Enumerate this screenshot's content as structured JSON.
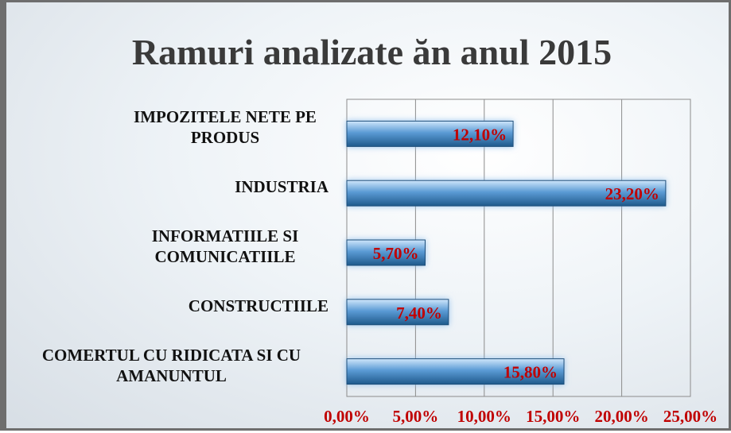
{
  "chart_data": {
    "type": "bar",
    "horizontal": true,
    "title": "Ramuri analizate ăn anul 2015",
    "categories": [
      "IMPOZITELE NETE PE PRODUS",
      "INDUSTRIA",
      "INFORMATIILE SI COMUNICATIILE",
      "CONSTRUCTIILE",
      "COMERTUL CU RIDICATA SI CU AMANUNTUL"
    ],
    "values": [
      12.1,
      23.2,
      5.7,
      7.4,
      15.8
    ],
    "value_labels": [
      "12,10%",
      "23,20%",
      "5,70%",
      "7,40%",
      "15,80%"
    ],
    "color": "#5b9bd5",
    "label_color": "#c00000",
    "xlim": [
      0,
      25
    ],
    "xticks": [
      {
        "value": 0,
        "label": "0,00%"
      },
      {
        "value": 5,
        "label": "5,00%"
      },
      {
        "value": 10,
        "label": "10,00%"
      },
      {
        "value": 15,
        "label": "15,00%"
      },
      {
        "value": 20,
        "label": "20,00%"
      },
      {
        "value": 25,
        "label": "25,00%"
      }
    ],
    "grid": true
  }
}
